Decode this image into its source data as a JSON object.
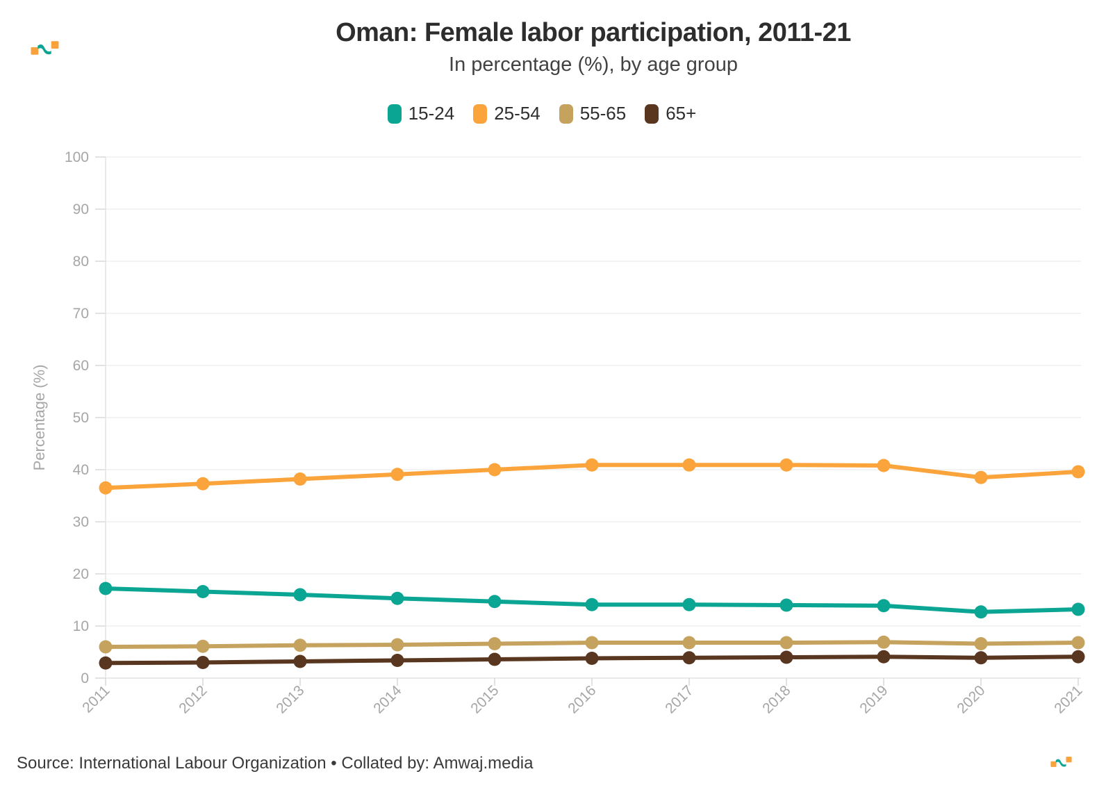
{
  "header": {
    "title": "Oman: Female labor participation, 2011-21",
    "subtitle": "In percentage (%), by age group"
  },
  "footer": {
    "source": "Source: International Labour Organization • Collated by: Amwaj.media"
  },
  "branding": {
    "logo_name": "amwaj-media-mark",
    "logo_orange": "#f9a13b",
    "logo_teal": "#0ba593"
  },
  "style_colors": {
    "axis_text": "#a6a6a6",
    "gridline": "#efefef",
    "axis_line": "#e3e3e3",
    "tick": "#d9d9d9",
    "title_text": "#2d2d2d",
    "subtitle_text": "#424242",
    "source_text": "#3a3a3a"
  },
  "chart_data": {
    "type": "line",
    "title": "Oman: Female labor participation, 2011-21",
    "subtitle": "In percentage (%), by age group",
    "x": [
      2011,
      2012,
      2013,
      2014,
      2015,
      2016,
      2017,
      2018,
      2019,
      2020,
      2021
    ],
    "series": [
      {
        "name": "15-24",
        "color": "#0ba593",
        "values": [
          17.2,
          16.6,
          16.0,
          15.3,
          14.7,
          14.1,
          14.1,
          14.0,
          13.9,
          12.7,
          13.2
        ]
      },
      {
        "name": "25-54",
        "color": "#fba43b",
        "values": [
          36.5,
          37.3,
          38.2,
          39.1,
          40.0,
          40.9,
          40.9,
          40.9,
          40.8,
          38.5,
          39.6
        ]
      },
      {
        "name": "55-65",
        "color": "#c5a35e",
        "values": [
          6.0,
          6.1,
          6.3,
          6.4,
          6.6,
          6.8,
          6.8,
          6.8,
          6.9,
          6.6,
          6.8
        ]
      },
      {
        "name": "65+",
        "color": "#59361f",
        "values": [
          2.9,
          3.0,
          3.2,
          3.4,
          3.6,
          3.8,
          3.9,
          4.0,
          4.1,
          3.9,
          4.1
        ]
      }
    ],
    "xlabel": "",
    "ylabel": "Percentage (%)",
    "ylim": [
      0,
      100
    ],
    "yticks": [
      0,
      10,
      20,
      30,
      40,
      50,
      60,
      70,
      80,
      90,
      100
    ],
    "grid": true,
    "legend_position": "top",
    "marker": "circle"
  }
}
